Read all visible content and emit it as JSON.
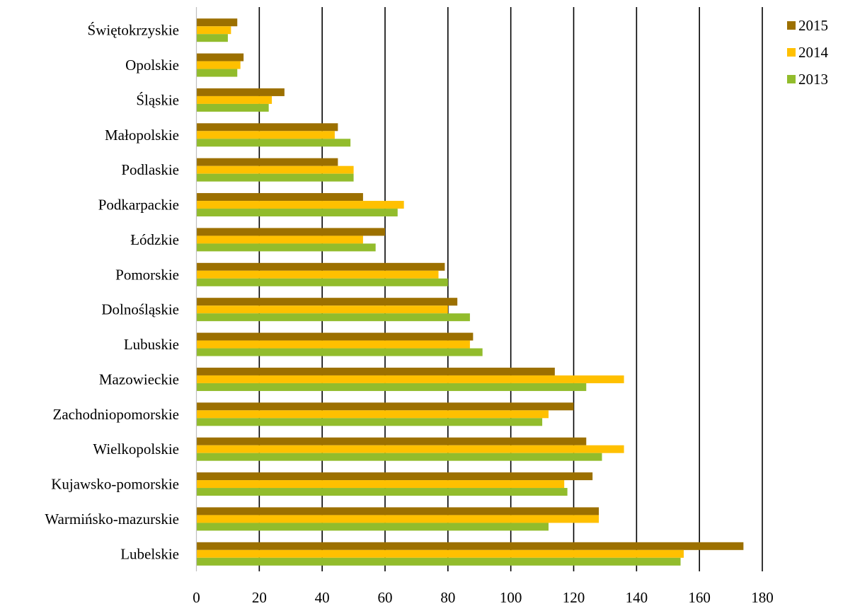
{
  "chart_data": {
    "type": "bar",
    "orientation": "horizontal",
    "categories": [
      "Świętokrzyskie",
      "Opolskie",
      "Śląskie",
      "Małopolskie",
      "Podlaskie",
      "Podkarpackie",
      "Łódzkie",
      "Pomorskie",
      "Dolnośląskie",
      "Lubuskie",
      "Mazowieckie",
      "Zachodniopomorskie",
      "Wielkopolskie",
      "Kujawsko-pomorskie",
      "Warmińsko-mazurskie",
      "Lubelskie"
    ],
    "series": [
      {
        "name": "2015",
        "color": "#9C7000",
        "values": [
          13,
          15,
          28,
          45,
          45,
          53,
          60,
          79,
          83,
          88,
          114,
          120,
          124,
          126,
          128,
          174
        ]
      },
      {
        "name": "2014",
        "color": "#FFC000",
        "values": [
          11,
          14,
          24,
          44,
          50,
          66,
          53,
          77,
          80,
          87,
          136,
          112,
          136,
          117,
          128,
          155
        ]
      },
      {
        "name": "2013",
        "color": "#92BC2C",
        "values": [
          10,
          13,
          23,
          49,
          50,
          64,
          57,
          80,
          87,
          91,
          124,
          110,
          129,
          118,
          112,
          154
        ]
      }
    ],
    "xlim": [
      0,
      180
    ],
    "xticks": [
      "0",
      "20",
      "40",
      "60",
      "80",
      "100",
      "120",
      "140",
      "160",
      "180"
    ],
    "grid": "vertical",
    "legend": {
      "position": "top-right",
      "order": [
        "2015",
        "2014",
        "2013"
      ]
    },
    "title": "",
    "xlabel": "",
    "ylabel": ""
  }
}
